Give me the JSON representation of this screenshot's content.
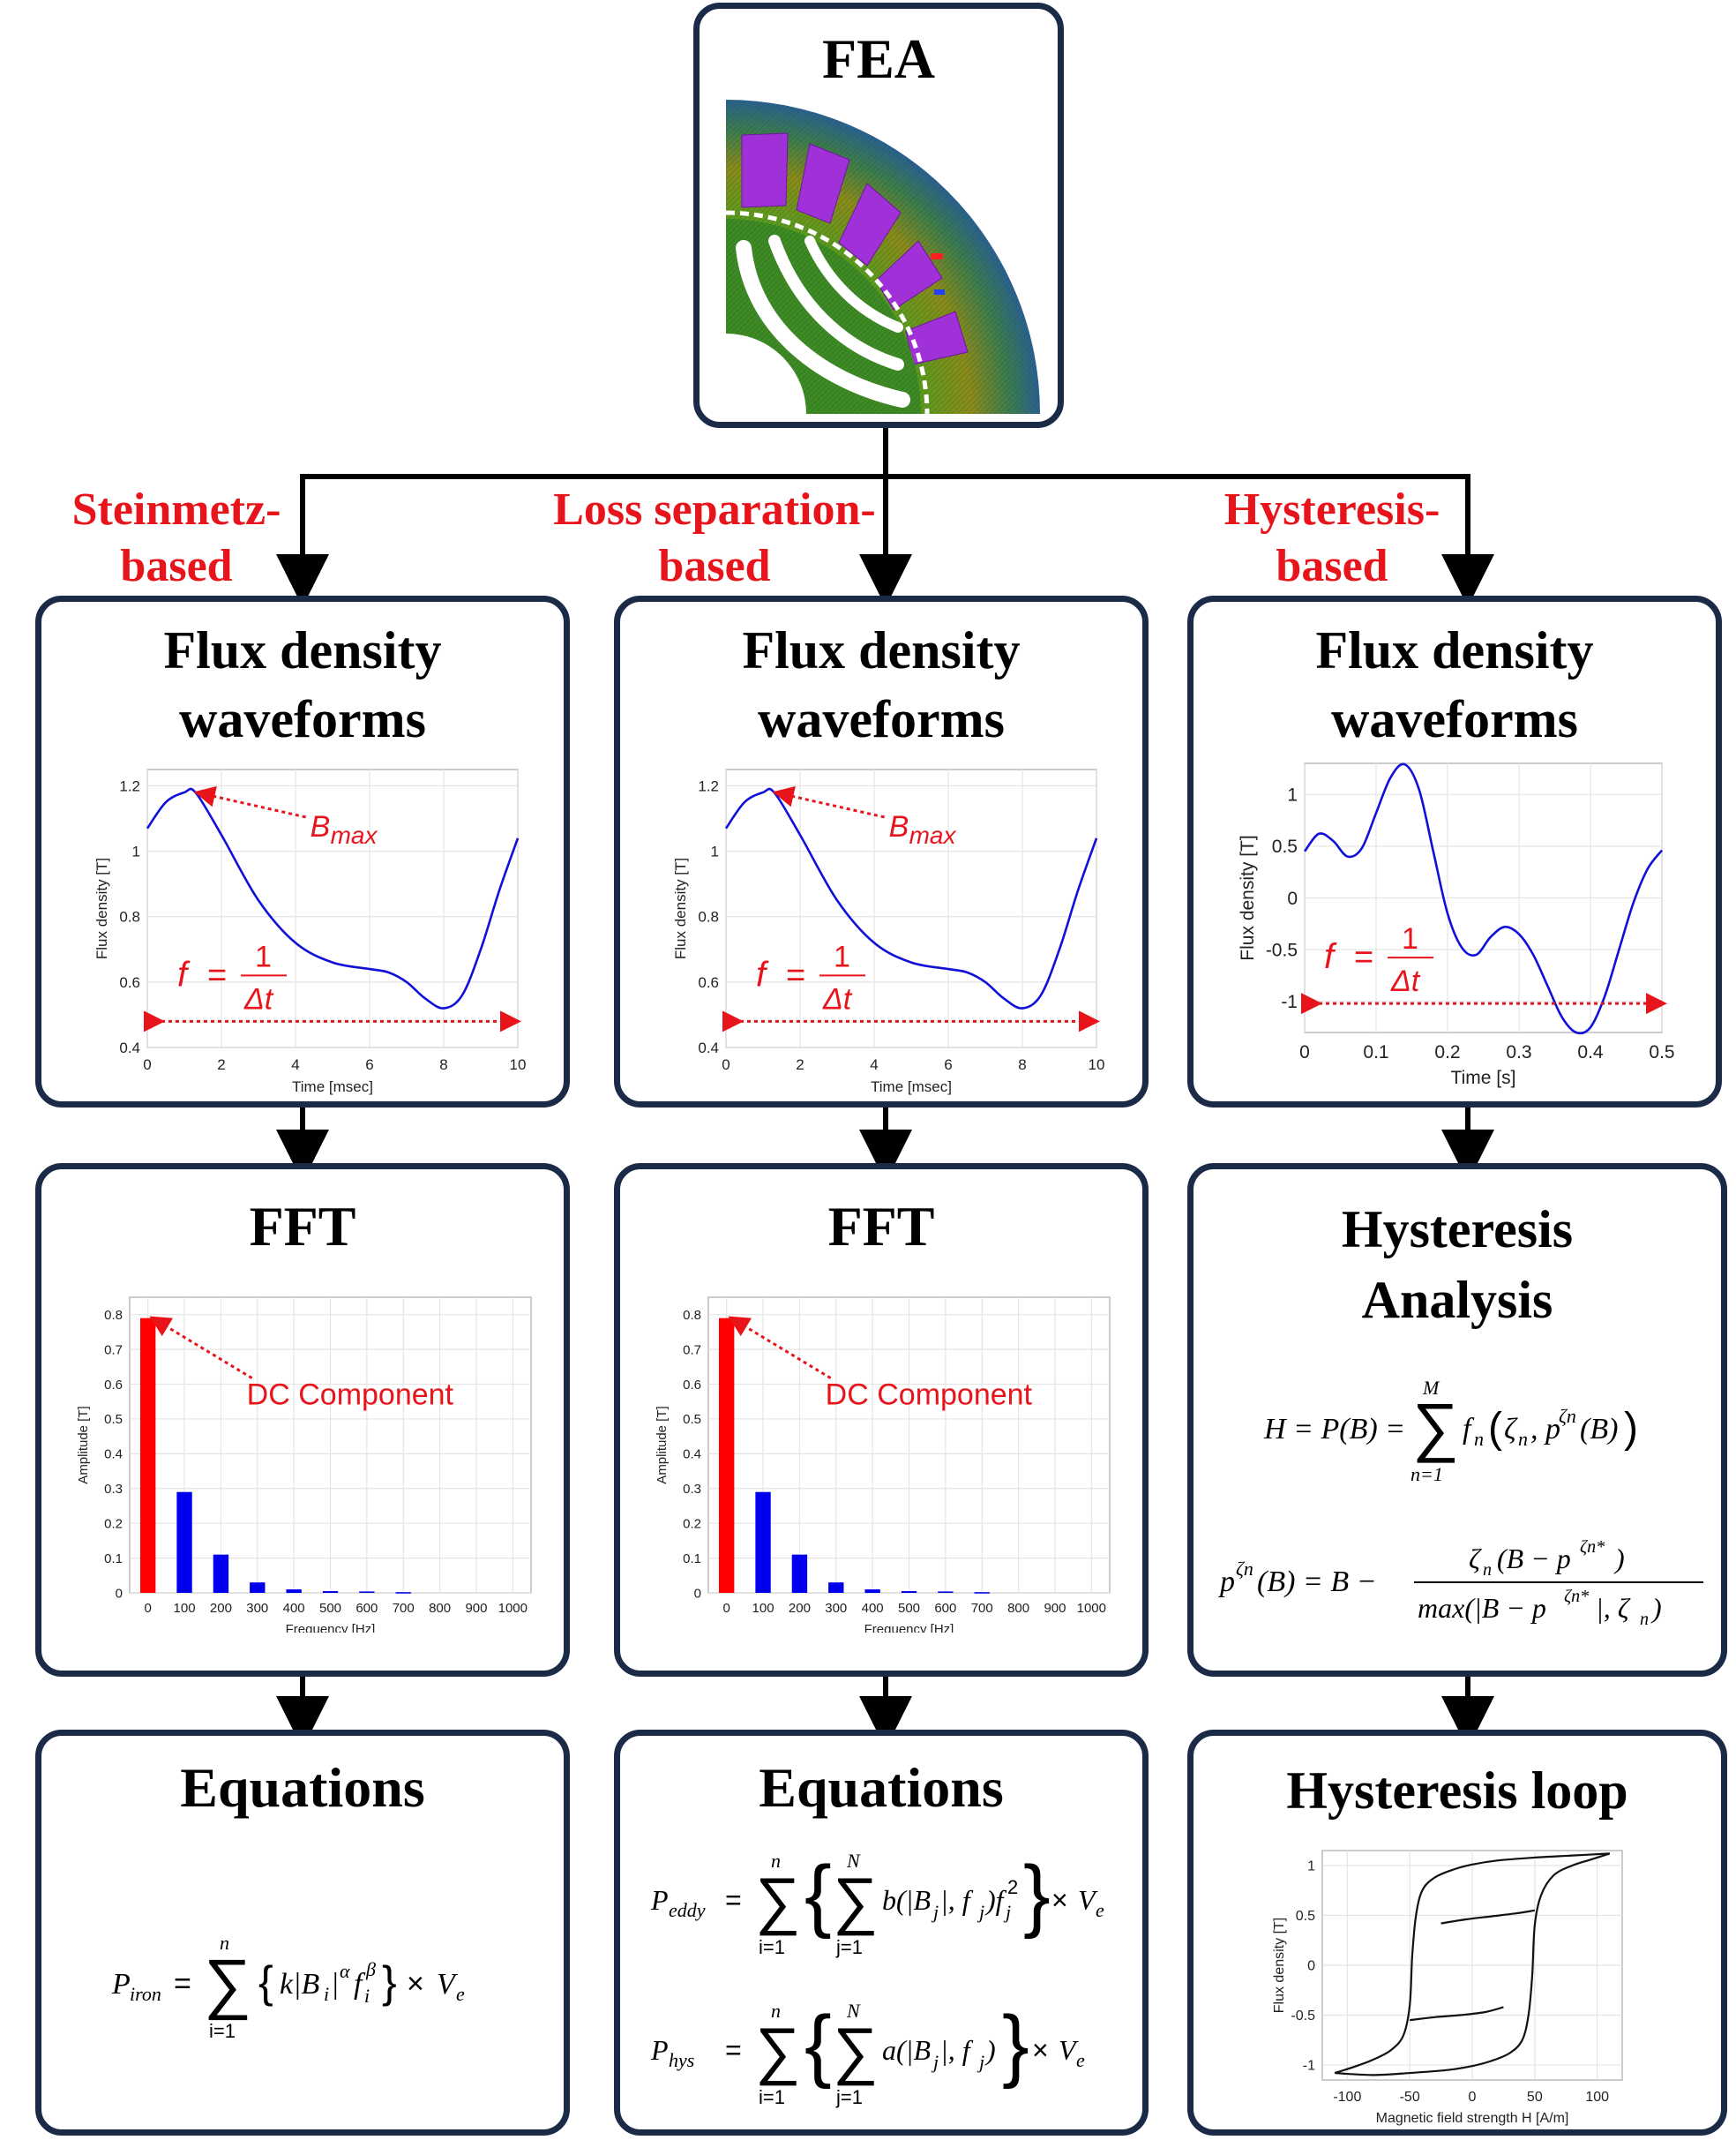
{
  "fea": {
    "title": "FEA"
  },
  "approaches": [
    {
      "name": "Steinmetz-",
      "name2": "based"
    },
    {
      "name": "Loss separation-",
      "name2": "based"
    },
    {
      "name": "Hysteresis-",
      "name2": "based"
    }
  ],
  "waveform_title_1": "Flux density",
  "waveform_title_2": "waveforms",
  "fft_title": "FFT",
  "hyst_analysis_title_1": "Hysteresis",
  "hyst_analysis_title_2": "Analysis",
  "equations_title": "Equations",
  "hyst_loop_title": "Hysteresis loop",
  "annotations": {
    "bmax": "B",
    "bmax_sub": "max",
    "freq_f": "f",
    "freq_eq": "=",
    "freq_num": "1",
    "freq_den": "Δt",
    "dc": "DC Component"
  },
  "equations": {
    "iron": "P_iron = Σ_{i=1}^{n} { k|B_i|^α f_i^β } × V_e",
    "eddy": "P_eddy = Σ_{i=1}^{n} { Σ_{j=1}^{N} b(|B_j|, f_j) f_j^2 } × V_e",
    "hys": "P_hys = Σ_{i=1}^{n} { Σ_{j=1}^{N} a(|B_j|, f_j) } × V_e",
    "hyst_h": "H = P(B) = Σ_{n=1}^{M} f_n(ζ_n, p^{ζn}(B))",
    "hyst_p": "p^{ζn}(B) = B − ζ_n(B − p^{ζn*}) / max(|B − p^{ζn*}|, ζ_n)"
  },
  "chart_data": [
    {
      "type": "line",
      "xlabel": "Time [msec]",
      "ylabel": "Flux density [T]",
      "xlim": [
        0,
        10
      ],
      "ylim": [
        0.4,
        1.25
      ],
      "xticks": [
        "0",
        "2",
        "4",
        "6",
        "8",
        "10"
      ],
      "yticks": [
        "0.4",
        "0.6",
        "0.8",
        "1",
        "1.2"
      ],
      "grid": true,
      "x": [
        0,
        0.5,
        1.0,
        1.3,
        2,
        3,
        4,
        5,
        6,
        6.5,
        7,
        7.5,
        8,
        8.5,
        9,
        9.5,
        10
      ],
      "y": [
        1.07,
        1.15,
        1.18,
        1.18,
        1.05,
        0.85,
        0.72,
        0.66,
        0.64,
        0.63,
        0.6,
        0.55,
        0.52,
        0.56,
        0.7,
        0.88,
        1.04
      ]
    },
    {
      "type": "line",
      "xlabel": "Time [msec]",
      "ylabel": "Flux density [T]",
      "xlim": [
        0,
        10
      ],
      "ylim": [
        0.4,
        1.25
      ],
      "xticks": [
        "0",
        "2",
        "4",
        "6",
        "8",
        "10"
      ],
      "yticks": [
        "0.4",
        "0.6",
        "0.8",
        "1",
        "1.2"
      ],
      "grid": true,
      "x": [
        0,
        0.5,
        1.0,
        1.3,
        2,
        3,
        4,
        5,
        6,
        6.5,
        7,
        7.5,
        8,
        8.5,
        9,
        9.5,
        10
      ],
      "y": [
        1.07,
        1.15,
        1.18,
        1.18,
        1.05,
        0.85,
        0.72,
        0.66,
        0.64,
        0.63,
        0.6,
        0.55,
        0.52,
        0.56,
        0.7,
        0.88,
        1.04
      ]
    },
    {
      "type": "line",
      "xlabel": "Time [s]",
      "ylabel": "Flux density [T]",
      "xlim": [
        0,
        0.5
      ],
      "ylim": [
        -1.3,
        1.3
      ],
      "xticks": [
        "0",
        "0.1",
        "0.2",
        "0.3",
        "0.4",
        "0.5"
      ],
      "yticks": [
        "-1",
        "-0.5",
        "0",
        "0.5",
        "1"
      ],
      "grid": true,
      "x": [
        0,
        0.02,
        0.04,
        0.06,
        0.08,
        0.1,
        0.12,
        0.14,
        0.16,
        0.18,
        0.2,
        0.22,
        0.24,
        0.26,
        0.28,
        0.3,
        0.32,
        0.34,
        0.36,
        0.38,
        0.4,
        0.42,
        0.44,
        0.46,
        0.48,
        0.5
      ],
      "y": [
        0.45,
        0.62,
        0.55,
        0.4,
        0.48,
        0.82,
        1.16,
        1.29,
        1.05,
        0.45,
        -0.15,
        -0.48,
        -0.55,
        -0.38,
        -0.28,
        -0.35,
        -0.55,
        -0.85,
        -1.15,
        -1.3,
        -1.25,
        -0.95,
        -0.5,
        -0.05,
        0.28,
        0.46
      ]
    },
    {
      "type": "bar",
      "xlabel": "Frequency [Hz]",
      "ylabel": "Amplitude [T]",
      "xlim": [
        -50,
        1050
      ],
      "ylim": [
        0,
        0.85
      ],
      "categories": [
        "0",
        "100",
        "200",
        "300",
        "400",
        "500",
        "600",
        "700",
        "800",
        "900",
        "1000"
      ],
      "values": [
        0.79,
        0.29,
        0.11,
        0.03,
        0.01,
        0.005,
        0.004,
        0.002,
        0,
        0,
        0
      ],
      "yticks": [
        "0",
        "0.1",
        "0.2",
        "0.3",
        "0.4",
        "0.5",
        "0.6",
        "0.7",
        "0.8"
      ],
      "colors": [
        "#ff0000",
        "#0000ee"
      ],
      "grid": true
    },
    {
      "type": "bar",
      "xlabel": "Frequency [Hz]",
      "ylabel": "Amplitude [T]",
      "xlim": [
        -50,
        1050
      ],
      "ylim": [
        0,
        0.85
      ],
      "categories": [
        "0",
        "100",
        "200",
        "300",
        "400",
        "500",
        "600",
        "700",
        "800",
        "900",
        "1000"
      ],
      "values": [
        0.79,
        0.29,
        0.11,
        0.03,
        0.01,
        0.005,
        0.004,
        0.002,
        0,
        0,
        0
      ],
      "yticks": [
        "0",
        "0.1",
        "0.2",
        "0.3",
        "0.4",
        "0.5",
        "0.6",
        "0.7",
        "0.8"
      ],
      "colors": [
        "#ff0000",
        "#0000ee"
      ],
      "grid": true
    },
    {
      "type": "line",
      "xlabel": "Magnetic field strength H [A/m]",
      "ylabel": "Flux density [T]",
      "xlim": [
        -120,
        120
      ],
      "ylim": [
        -1.15,
        1.15
      ],
      "xticks": [
        "-100",
        "-50",
        "0",
        "50",
        "100"
      ],
      "yticks": [
        "-1",
        "-0.5",
        "0",
        "0.5",
        "1"
      ],
      "grid": true,
      "series": [
        {
          "x": [
            -110,
            -95,
            -80,
            -65,
            -55,
            -50,
            -48,
            -45,
            -40,
            -30,
            -15,
            0,
            20,
            50,
            80,
            110
          ],
          "y": [
            -1.08,
            -1.02,
            -0.95,
            -0.85,
            -0.7,
            -0.4,
            0.1,
            0.5,
            0.75,
            0.88,
            0.96,
            1.01,
            1.05,
            1.08,
            1.1,
            1.12
          ]
        },
        {
          "x": [
            110,
            95,
            80,
            65,
            55,
            50,
            48,
            45,
            40,
            30,
            15,
            0,
            -20,
            -50,
            -80,
            -110
          ],
          "y": [
            1.12,
            1.06,
            1.0,
            0.9,
            0.7,
            0.4,
            -0.1,
            -0.5,
            -0.75,
            -0.88,
            -0.96,
            -1.01,
            -1.05,
            -1.08,
            -1.1,
            -1.08
          ]
        },
        {
          "x": [
            -50,
            -30,
            -10,
            10,
            25
          ],
          "y": [
            -0.55,
            -0.52,
            -0.5,
            -0.47,
            -0.42
          ]
        },
        {
          "x": [
            -25,
            -5,
            15,
            35,
            50
          ],
          "y": [
            0.42,
            0.46,
            0.49,
            0.52,
            0.55
          ]
        }
      ]
    }
  ]
}
